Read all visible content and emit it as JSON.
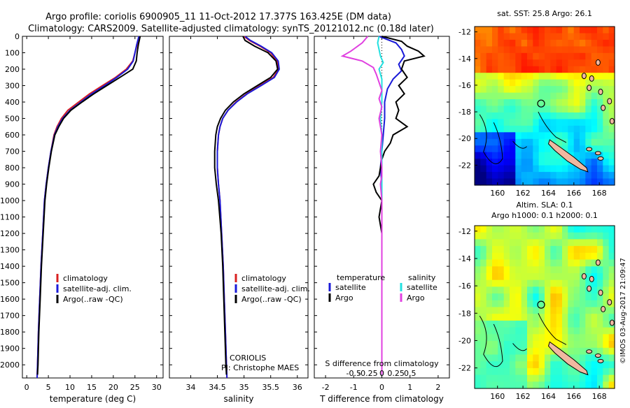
{
  "header": {
    "line1": "Argo profile: coriolis 6900905_11 11-Oct-2012 17.377S 163.425E (DM data)",
    "line2": "Climatology: CARS2009. Satellite-adjusted climatology: synTS_20121012.nc (0.18d later)"
  },
  "credit": {
    "institution": "CORIOLIS",
    "pi": "PI: Christophe MAES"
  },
  "stamp": "©IMOS 03-Aug-2017 21:09:47",
  "colors": {
    "climatology": "#d82020",
    "satellite": "#1a1ad8",
    "argo": "#000000",
    "sat_salinity": "#22e0e0",
    "argo_salinity": "#e040e0",
    "island": "#f0b8a0"
  },
  "depth_axis": {
    "ticks": [
      0,
      100,
      200,
      300,
      400,
      500,
      600,
      700,
      800,
      900,
      1000,
      1100,
      1200,
      1300,
      1400,
      1500,
      1600,
      1700,
      1800,
      1900,
      2000
    ],
    "range": [
      0,
      2080
    ]
  },
  "chart_data": [
    {
      "type": "line",
      "xlabel": "temperature (deg C)",
      "xlim": [
        -1,
        31.5
      ],
      "xticks": [
        0,
        5,
        10,
        15,
        20,
        25,
        30
      ],
      "ylim": [
        0,
        2080
      ],
      "legend": [
        "climatology",
        "satellite-adj. clim.",
        "Argo(..raw -QC)"
      ],
      "series": [
        {
          "name": "climatology",
          "color": "#d82020",
          "points": [
            [
              26.0,
              0
            ],
            [
              25.5,
              50
            ],
            [
              25.0,
              100
            ],
            [
              24.5,
              150
            ],
            [
              23.0,
              200
            ],
            [
              20.5,
              250
            ],
            [
              17.5,
              300
            ],
            [
              14.5,
              350
            ],
            [
              12.0,
              400
            ],
            [
              9.5,
              450
            ],
            [
              8.0,
              500
            ],
            [
              7.0,
              550
            ],
            [
              6.3,
              600
            ],
            [
              5.6,
              700
            ],
            [
              5.0,
              800
            ],
            [
              4.5,
              900
            ],
            [
              4.1,
              1000
            ],
            [
              3.7,
              1200
            ],
            [
              3.3,
              1400
            ],
            [
              3.0,
              1600
            ],
            [
              2.7,
              1800
            ],
            [
              2.5,
              2000
            ],
            [
              2.4,
              2080
            ]
          ]
        },
        {
          "name": "satellite-adj. clim.",
          "color": "#1a1ad8",
          "points": [
            [
              25.9,
              0
            ],
            [
              25.4,
              50
            ],
            [
              25.0,
              100
            ],
            [
              24.6,
              150
            ],
            [
              23.3,
              200
            ],
            [
              20.8,
              250
            ],
            [
              18.0,
              300
            ],
            [
              15.0,
              350
            ],
            [
              12.5,
              400
            ],
            [
              10.0,
              450
            ],
            [
              8.3,
              500
            ],
            [
              7.2,
              550
            ],
            [
              6.4,
              600
            ],
            [
              5.6,
              700
            ],
            [
              5.0,
              800
            ],
            [
              4.5,
              900
            ],
            [
              4.1,
              1000
            ],
            [
              3.7,
              1200
            ],
            [
              3.3,
              1400
            ],
            [
              3.0,
              1600
            ],
            [
              2.7,
              1800
            ],
            [
              2.5,
              2000
            ],
            [
              2.4,
              2080
            ]
          ]
        },
        {
          "name": "Argo(..raw -QC)",
          "color": "#000000",
          "points": [
            [
              26.2,
              0
            ],
            [
              25.8,
              50
            ],
            [
              25.5,
              100
            ],
            [
              25.3,
              150
            ],
            [
              24.5,
              200
            ],
            [
              21.5,
              250
            ],
            [
              18.5,
              300
            ],
            [
              15.5,
              350
            ],
            [
              12.8,
              400
            ],
            [
              10.2,
              450
            ],
            [
              8.5,
              500
            ],
            [
              7.4,
              550
            ],
            [
              6.5,
              600
            ],
            [
              5.7,
              700
            ],
            [
              5.1,
              800
            ],
            [
              4.6,
              900
            ],
            [
              4.2,
              1000
            ],
            [
              3.8,
              1200
            ],
            [
              3.4,
              1400
            ],
            [
              3.1,
              1600
            ],
            [
              2.8,
              1800
            ],
            [
              2.6,
              2000
            ],
            [
              2.5,
              2060
            ]
          ]
        }
      ]
    },
    {
      "type": "line",
      "xlabel": "salinity",
      "xlim": [
        33.6,
        36.2
      ],
      "xticks": [
        34,
        34.5,
        35,
        35.5,
        36
      ],
      "ylim": [
        0,
        2080
      ],
      "legend": [
        "climatology",
        "satellite-adj. clim.",
        "Argo(..raw -QC)"
      ],
      "series": [
        {
          "name": "climatology",
          "color": "#d82020",
          "points": [
            [
              35.0,
              0
            ],
            [
              35.1,
              25
            ],
            [
              35.3,
              60
            ],
            [
              35.5,
              100
            ],
            [
              35.62,
              150
            ],
            [
              35.65,
              200
            ],
            [
              35.55,
              250
            ],
            [
              35.3,
              300
            ],
            [
              35.05,
              350
            ],
            [
              34.85,
              400
            ],
            [
              34.7,
              450
            ],
            [
              34.6,
              500
            ],
            [
              34.55,
              550
            ],
            [
              34.52,
              600
            ],
            [
              34.5,
              700
            ],
            [
              34.5,
              800
            ],
            [
              34.52,
              900
            ],
            [
              34.55,
              1000
            ],
            [
              34.58,
              1200
            ],
            [
              34.61,
              1400
            ],
            [
              34.63,
              1600
            ],
            [
              34.65,
              1800
            ],
            [
              34.67,
              2000
            ],
            [
              34.68,
              2080
            ]
          ]
        },
        {
          "name": "satellite-adj. clim.",
          "color": "#1a1ad8",
          "points": [
            [
              35.02,
              0
            ],
            [
              35.12,
              25
            ],
            [
              35.32,
              60
            ],
            [
              35.52,
              100
            ],
            [
              35.64,
              150
            ],
            [
              35.66,
              200
            ],
            [
              35.57,
              250
            ],
            [
              35.32,
              300
            ],
            [
              35.06,
              350
            ],
            [
              34.86,
              400
            ],
            [
              34.7,
              450
            ],
            [
              34.6,
              500
            ],
            [
              34.55,
              550
            ],
            [
              34.52,
              600
            ],
            [
              34.5,
              700
            ],
            [
              34.5,
              800
            ],
            [
              34.52,
              900
            ],
            [
              34.55,
              1000
            ],
            [
              34.58,
              1200
            ],
            [
              34.61,
              1400
            ],
            [
              34.63,
              1600
            ],
            [
              34.65,
              1800
            ],
            [
              34.67,
              2000
            ],
            [
              34.68,
              2080
            ]
          ]
        },
        {
          "name": "Argo(..raw -QC)",
          "color": "#000000",
          "points": [
            [
              34.98,
              0
            ],
            [
              35.02,
              25
            ],
            [
              35.2,
              60
            ],
            [
              35.45,
              100
            ],
            [
              35.6,
              150
            ],
            [
              35.63,
              200
            ],
            [
              35.5,
              250
            ],
            [
              35.25,
              300
            ],
            [
              35.0,
              350
            ],
            [
              34.8,
              400
            ],
            [
              34.65,
              450
            ],
            [
              34.56,
              500
            ],
            [
              34.5,
              550
            ],
            [
              34.47,
              600
            ],
            [
              34.45,
              700
            ],
            [
              34.45,
              800
            ],
            [
              34.48,
              900
            ],
            [
              34.52,
              1000
            ],
            [
              34.57,
              1200
            ],
            [
              34.6,
              1400
            ],
            [
              34.62,
              1600
            ],
            [
              34.64,
              1800
            ],
            [
              34.66,
              2000
            ],
            [
              34.67,
              2060
            ]
          ]
        }
      ]
    },
    {
      "type": "line",
      "xlabel": "T difference from climatology",
      "x2label": "S difference from climatology",
      "xlim": [
        -2.4,
        2.4
      ],
      "xticks": [
        -2,
        -1,
        0,
        1,
        2
      ],
      "x2ticks": [
        "-0.5",
        "-0.25",
        "0",
        "0.25",
        "0.5"
      ],
      "ylim": [
        0,
        2080
      ],
      "legend": {
        "temperature": [
          "satellite",
          "Argo"
        ],
        "salinity": [
          "satellite",
          "Argo"
        ]
      },
      "series": [
        {
          "name": "temperature satellite",
          "color": "#1a1ad8",
          "points": [
            [
              -0.1,
              0
            ],
            [
              0.5,
              40
            ],
            [
              0.7,
              80
            ],
            [
              0.8,
              120
            ],
            [
              0.6,
              170
            ],
            [
              0.7,
              210
            ],
            [
              0.4,
              260
            ],
            [
              0.2,
              320
            ],
            [
              0.1,
              400
            ],
            [
              0.1,
              500
            ],
            [
              0.05,
              600
            ],
            [
              0.0,
              700
            ],
            [
              -0.05,
              800
            ],
            [
              0.0,
              900
            ],
            [
              0.0,
              1000
            ],
            [
              0.0,
              1200
            ],
            [
              0.0,
              1600
            ],
            [
              0.0,
              2000
            ],
            [
              0.0,
              2060
            ]
          ]
        },
        {
          "name": "temperature Argo",
          "color": "#000000",
          "points": [
            [
              0.0,
              0
            ],
            [
              0.7,
              30
            ],
            [
              0.9,
              60
            ],
            [
              1.3,
              90
            ],
            [
              1.5,
              120
            ],
            [
              0.8,
              150
            ],
            [
              0.7,
              200
            ],
            [
              0.9,
              250
            ],
            [
              0.6,
              300
            ],
            [
              0.8,
              350
            ],
            [
              0.5,
              400
            ],
            [
              0.6,
              450
            ],
            [
              0.5,
              500
            ],
            [
              0.9,
              550
            ],
            [
              0.4,
              600
            ],
            [
              0.3,
              650
            ],
            [
              0.1,
              700
            ],
            [
              0.0,
              750
            ],
            [
              -0.1,
              850
            ],
            [
              -0.3,
              900
            ],
            [
              -0.2,
              950
            ],
            [
              0.0,
              1000
            ],
            [
              -0.1,
              1100
            ],
            [
              0.0,
              1200
            ],
            [
              0.0,
              1400
            ],
            [
              0.0,
              1800
            ],
            [
              0.0,
              2060
            ]
          ]
        },
        {
          "name": "salinity satellite",
          "color": "#22e0e0",
          "points": [
            [
              -0.1,
              0
            ],
            [
              -0.15,
              40
            ],
            [
              -0.1,
              80
            ],
            [
              -0.05,
              120
            ],
            [
              0.05,
              160
            ],
            [
              -0.1,
              200
            ],
            [
              0.0,
              260
            ],
            [
              0.0,
              320
            ],
            [
              0.0,
              400
            ],
            [
              -0.05,
              500
            ],
            [
              0.0,
              600
            ],
            [
              0.0,
              700
            ],
            [
              0.0,
              800
            ],
            [
              0.0,
              1000
            ],
            [
              0.0,
              1500
            ],
            [
              0.0,
              2000
            ],
            [
              0.0,
              2060
            ]
          ]
        },
        {
          "name": "salinity Argo",
          "color": "#e040e0",
          "points": [
            [
              -0.5,
              0
            ],
            [
              -0.7,
              40
            ],
            [
              -1.1,
              90
            ],
            [
              -1.4,
              120
            ],
            [
              -0.7,
              150
            ],
            [
              -0.3,
              190
            ],
            [
              -0.2,
              230
            ],
            [
              -0.1,
              280
            ],
            [
              0.0,
              330
            ],
            [
              -0.1,
              380
            ],
            [
              0.0,
              430
            ],
            [
              -0.1,
              500
            ],
            [
              0.0,
              600
            ],
            [
              -0.05,
              700
            ],
            [
              0.0,
              800
            ],
            [
              0.0,
              850
            ],
            [
              -0.05,
              900
            ],
            [
              0.0,
              1000
            ],
            [
              0.0,
              1300
            ],
            [
              0.0,
              1700
            ],
            [
              0.0,
              2060
            ]
          ]
        }
      ]
    },
    {
      "type": "heatmap",
      "title": "sat. SST: 25.8 Argo: 26.1",
      "xticks": [
        160,
        162,
        164,
        166,
        168
      ],
      "yticks": [
        -12,
        -14,
        -16,
        -18,
        -20,
        -22
      ],
      "lon_range": [
        158.2,
        169.2
      ],
      "lat_range": [
        -23.5,
        -11.6
      ],
      "float_position": [
        163.425,
        -17.377
      ]
    },
    {
      "type": "heatmap",
      "title": "Altim. SLA: 0.1",
      "subtitle": "Argo h1000: 0.1 h2000: 0.1",
      "xticks": [
        160,
        162,
        164,
        166,
        168
      ],
      "yticks": [
        -12,
        -14,
        -16,
        -18,
        -20,
        -22
      ],
      "lon_range": [
        158.2,
        169.2
      ],
      "lat_range": [
        -23.5,
        -11.6
      ],
      "float_position": [
        163.425,
        -17.377
      ]
    }
  ]
}
